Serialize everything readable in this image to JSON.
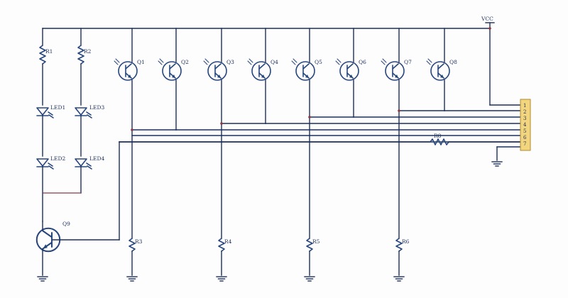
{
  "labels": {
    "vcc": "VCC",
    "r1": "R1",
    "r2": "R2",
    "r3": "R3",
    "r4": "R4",
    "r5": "R5",
    "r6": "R6",
    "r8": "R8",
    "led1": "LED1",
    "led2": "LED2",
    "led3": "LED3",
    "led4": "LED4",
    "q1": "Q1",
    "q2": "Q2",
    "q3": "Q3",
    "q4": "Q4",
    "q5": "Q5",
    "q6": "Q6",
    "q7": "Q7",
    "q8": "Q8",
    "q9": "Q9"
  },
  "connector": {
    "pins": [
      "1",
      "2",
      "3",
      "4",
      "5",
      "6",
      "7"
    ]
  },
  "colors": {
    "wire": "#1c2f5e",
    "component": "#27467d",
    "header": "#f3d57d"
  }
}
